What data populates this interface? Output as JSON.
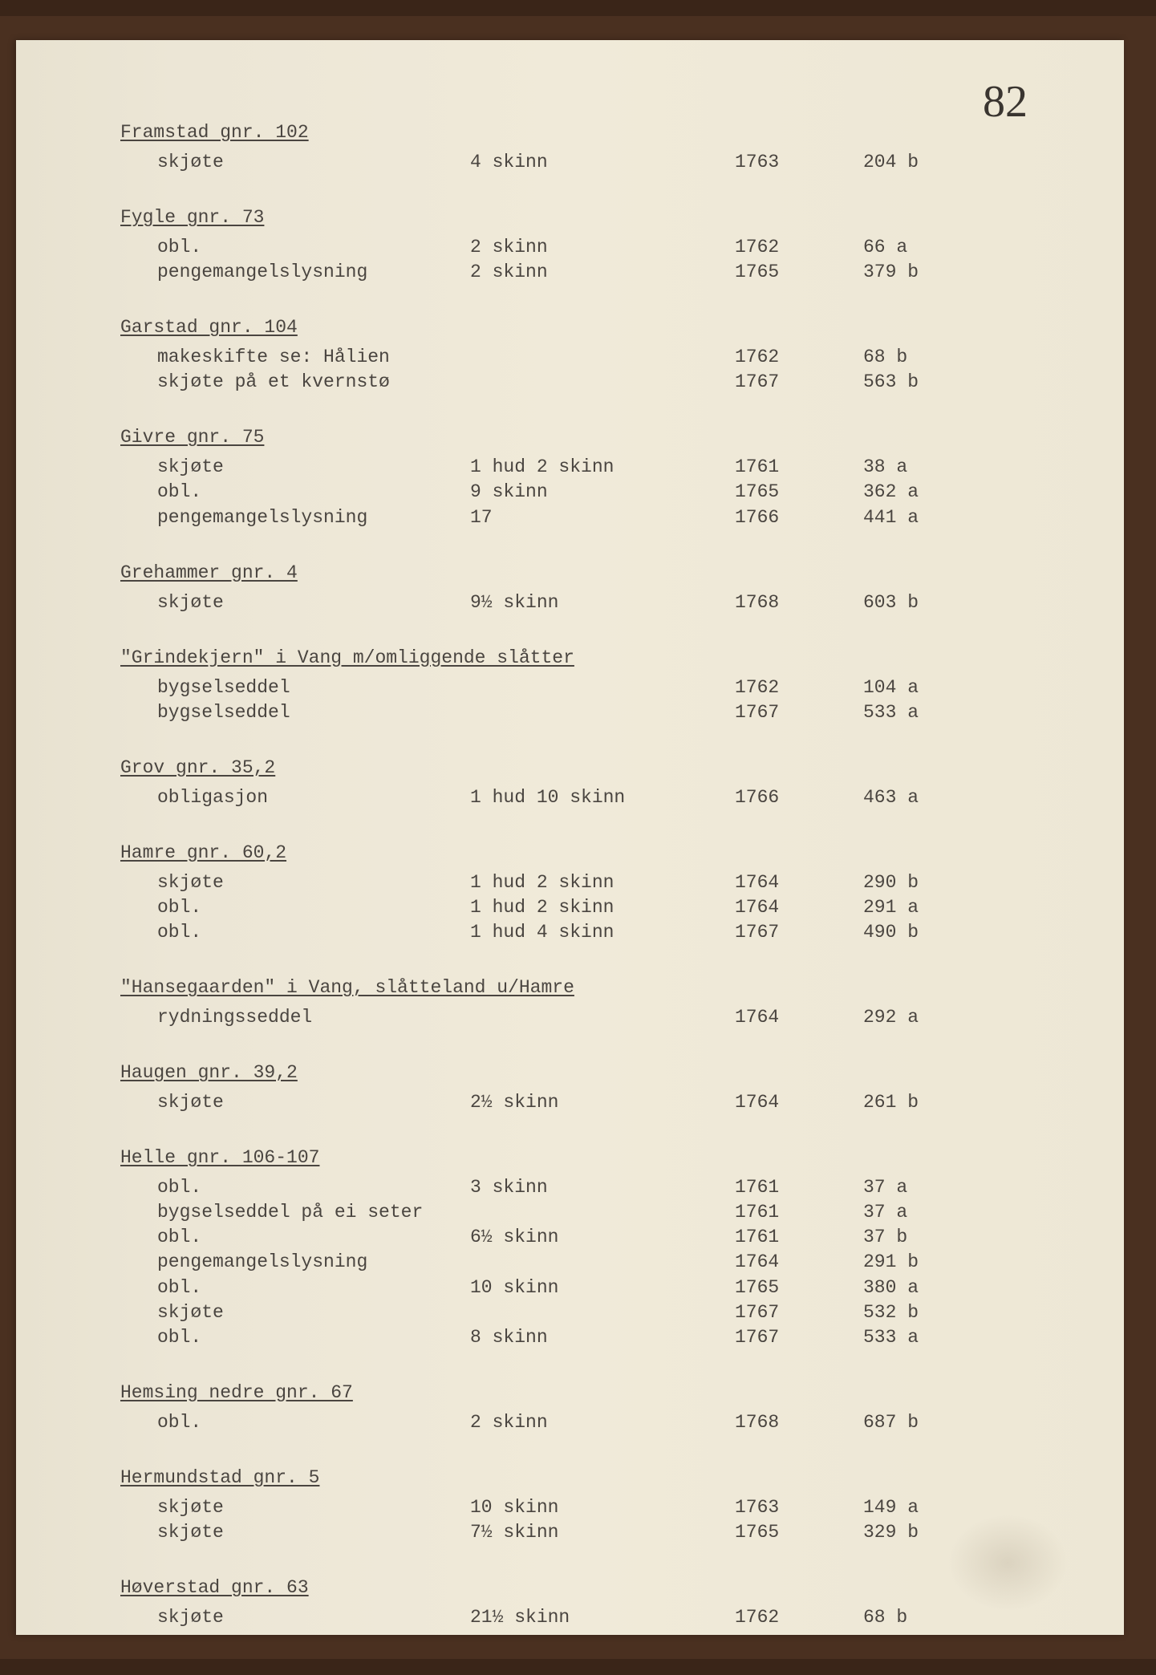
{
  "page_number": "82",
  "typography": {
    "font_family": "Courier New",
    "font_size_pt": 17,
    "page_number_font": "Georgia",
    "page_number_size_pt": 42,
    "text_color": "#4a4540"
  },
  "colors": {
    "page_background": "#f0ead9",
    "binding": "#4a3020",
    "outer": "#3a2518"
  },
  "sections": [
    {
      "header": "Framstad gnr. 102",
      "entries": [
        {
          "desc": "skjøte",
          "amount": "4 skinn",
          "year": "1763",
          "ref": "204 b"
        }
      ]
    },
    {
      "header": "Fygle gnr. 73",
      "entries": [
        {
          "desc": "obl.",
          "amount": "2 skinn",
          "year": "1762",
          "ref": "66 a"
        },
        {
          "desc": "pengemangelslysning",
          "amount": "2 skinn",
          "year": "1765",
          "ref": "379 b"
        }
      ]
    },
    {
      "header": "Garstad gnr. 104",
      "entries": [
        {
          "desc": "makeskifte se: Hålien",
          "amount": "",
          "year": "1762",
          "ref": "68 b"
        },
        {
          "desc": "skjøte på et kvernstø",
          "amount": "",
          "year": "1767",
          "ref": "563 b"
        }
      ]
    },
    {
      "header": "Givre gnr. 75",
      "entries": [
        {
          "desc": "skjøte",
          "amount": "1 hud 2 skinn",
          "year": "1761",
          "ref": "38 a"
        },
        {
          "desc": "obl.",
          "amount": "9 skinn",
          "year": "1765",
          "ref": "362 a"
        },
        {
          "desc": "pengemangelslysning",
          "amount": "17",
          "year": "1766",
          "ref": "441 a"
        }
      ]
    },
    {
      "header": "Grehammer gnr. 4",
      "entries": [
        {
          "desc": "skjøte",
          "amount": "9½ skinn",
          "year": "1768",
          "ref": "603 b"
        }
      ]
    },
    {
      "header": "\"Grindekjern\" i Vang m/omliggende slåtter",
      "entries": [
        {
          "desc": "bygselseddel",
          "amount": "",
          "year": "1762",
          "ref": "104 a"
        },
        {
          "desc": "bygselseddel",
          "amount": "",
          "year": "1767",
          "ref": "533 a"
        }
      ]
    },
    {
      "header": "Grov gnr. 35,2",
      "entries": [
        {
          "desc": "obligasjon",
          "amount": "1 hud 10 skinn",
          "year": "1766",
          "ref": "463 a"
        }
      ]
    },
    {
      "header": "Hamre gnr. 60,2",
      "entries": [
        {
          "desc": "skjøte",
          "amount": "1 hud 2 skinn",
          "year": "1764",
          "ref": "290 b"
        },
        {
          "desc": "obl.",
          "amount": "1 hud 2 skinn",
          "year": "1764",
          "ref": "291 a"
        },
        {
          "desc": "obl.",
          "amount": "1 hud 4 skinn",
          "year": "1767",
          "ref": "490 b"
        }
      ]
    },
    {
      "header": "\"Hansegaarden\" i Vang, slåtteland u/Hamre",
      "entries": [
        {
          "desc": "rydningsseddel",
          "amount": "",
          "year": "1764",
          "ref": "292 a"
        }
      ]
    },
    {
      "header": "Haugen gnr. 39,2",
      "entries": [
        {
          "desc": "skjøte",
          "amount": "2½ skinn",
          "year": "1764",
          "ref": "261 b"
        }
      ]
    },
    {
      "header": "Helle gnr. 106-107",
      "entries": [
        {
          "desc": "obl.",
          "amount": "3 skinn",
          "year": "1761",
          "ref": "37 a"
        },
        {
          "desc": "bygselseddel på ei seter",
          "amount": "",
          "year": "1761",
          "ref": "37 a"
        },
        {
          "desc": "obl.",
          "amount": "6½ skinn",
          "year": "1761",
          "ref": "37 b"
        },
        {
          "desc": "pengemangelslysning",
          "amount": "",
          "year": "1764",
          "ref": "291 b"
        },
        {
          "desc": "obl.",
          "amount": "10 skinn",
          "year": "1765",
          "ref": "380 a"
        },
        {
          "desc": "skjøte",
          "amount": "",
          "year": "1767",
          "ref": "532 b"
        },
        {
          "desc": "obl.",
          "amount": "8 skinn",
          "year": "1767",
          "ref": "533 a"
        }
      ]
    },
    {
      "header": "Hemsing nedre gnr. 67",
      "entries": [
        {
          "desc": "obl.",
          "amount": "2 skinn",
          "year": "1768",
          "ref": "687 b"
        }
      ]
    },
    {
      "header": "Hermundstad gnr. 5",
      "entries": [
        {
          "desc": "skjøte",
          "amount": "10 skinn",
          "year": "1763",
          "ref": "149 a"
        },
        {
          "desc": "skjøte",
          "amount": "7½ skinn",
          "year": "1765",
          "ref": "329 b"
        }
      ]
    },
    {
      "header": "Høverstad gnr. 63",
      "entries": [
        {
          "desc": "skjøte",
          "amount": "21½ skinn",
          "year": "1762",
          "ref": "68 b"
        }
      ]
    }
  ]
}
